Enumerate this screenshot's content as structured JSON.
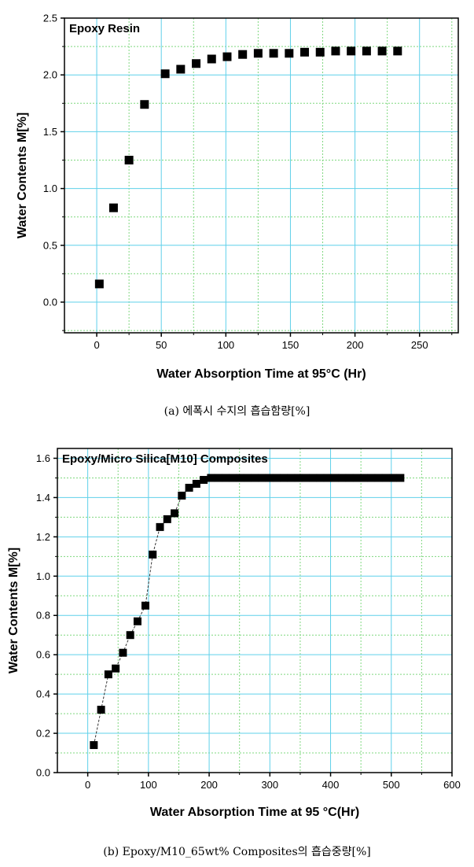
{
  "chart_data": [
    {
      "type": "scatter",
      "title": "Epoxy Resin",
      "xlabel": "Water Absorption Time at 95°C (Hr)",
      "ylabel": "Water Contents M[%]",
      "xlim": [
        -25,
        280
      ],
      "ylim": [
        -0.27,
        2.5
      ],
      "xticks": [
        0,
        50,
        100,
        150,
        200,
        250
      ],
      "yticks": [
        0.0,
        0.5,
        1.0,
        1.5,
        2.0,
        2.5
      ],
      "xtick_labels": [
        "0",
        "50",
        "100",
        "150",
        "200",
        "250"
      ],
      "ytick_labels": [
        "0.0",
        "0.5",
        "1.0",
        "1.5",
        "2.0",
        "2.5"
      ],
      "grid": true,
      "connected": false,
      "series": [
        {
          "x": [
            2,
            13,
            25,
            37,
            53,
            65,
            77,
            89,
            101,
            113,
            125,
            137,
            149,
            161,
            173,
            185,
            197,
            209,
            221,
            233
          ],
          "y": [
            0.16,
            0.83,
            1.25,
            1.74,
            2.01,
            2.05,
            2.1,
            2.14,
            2.16,
            2.18,
            2.19,
            2.19,
            2.19,
            2.2,
            2.2,
            2.21,
            2.21,
            2.21,
            2.21,
            2.21
          ]
        }
      ]
    },
    {
      "type": "line",
      "title": "Epoxy/Micro Silica[M10] Composites",
      "xlabel": "Water Absorption Time at 95 °C(Hr)",
      "ylabel": "Water Contents M[%]",
      "xlim": [
        -50,
        600
      ],
      "ylim": [
        0.0,
        1.65
      ],
      "xticks": [
        0,
        100,
        200,
        300,
        400,
        500,
        600
      ],
      "yticks": [
        0.0,
        0.2,
        0.4,
        0.6,
        0.8,
        1.0,
        1.2,
        1.4,
        1.6
      ],
      "xtick_labels": [
        "0",
        "100",
        "200",
        "300",
        "400",
        "500",
        "600"
      ],
      "ytick_labels": [
        "0.0",
        "0.2",
        "0.4",
        "0.6",
        "0.8",
        "1.0",
        "1.2",
        "1.4",
        "1.6"
      ],
      "grid": true,
      "connected": true,
      "series": [
        {
          "x": [
            10,
            22,
            34,
            46,
            58,
            70,
            82,
            95,
            107,
            119,
            131,
            143,
            155,
            167,
            179,
            191,
            203,
            215,
            227,
            239,
            251,
            263,
            275,
            287,
            299,
            311,
            323,
            335,
            347,
            359,
            371,
            383,
            395,
            407,
            419,
            431,
            443,
            455,
            467,
            479,
            491,
            503,
            515
          ],
          "y": [
            0.14,
            0.32,
            0.5,
            0.53,
            0.61,
            0.7,
            0.77,
            0.85,
            1.11,
            1.25,
            1.29,
            1.32,
            1.41,
            1.45,
            1.47,
            1.49,
            1.5,
            1.5,
            1.5,
            1.5,
            1.5,
            1.5,
            1.5,
            1.5,
            1.5,
            1.5,
            1.5,
            1.5,
            1.5,
            1.5,
            1.5,
            1.5,
            1.5,
            1.5,
            1.5,
            1.5,
            1.5,
            1.5,
            1.5,
            1.5,
            1.5,
            1.5,
            1.5
          ]
        }
      ]
    }
  ],
  "captions": {
    "a": "(a) 에폭시 수지의 흡습함량[%]",
    "b": "(b) Epoxy/M10_65wt% Composites의 흡습중량[%]"
  },
  "colors": {
    "grid_major": "#5fd0ea",
    "grid_minor": "#7fd87f",
    "marker": "#000000",
    "axis": "#000000"
  }
}
